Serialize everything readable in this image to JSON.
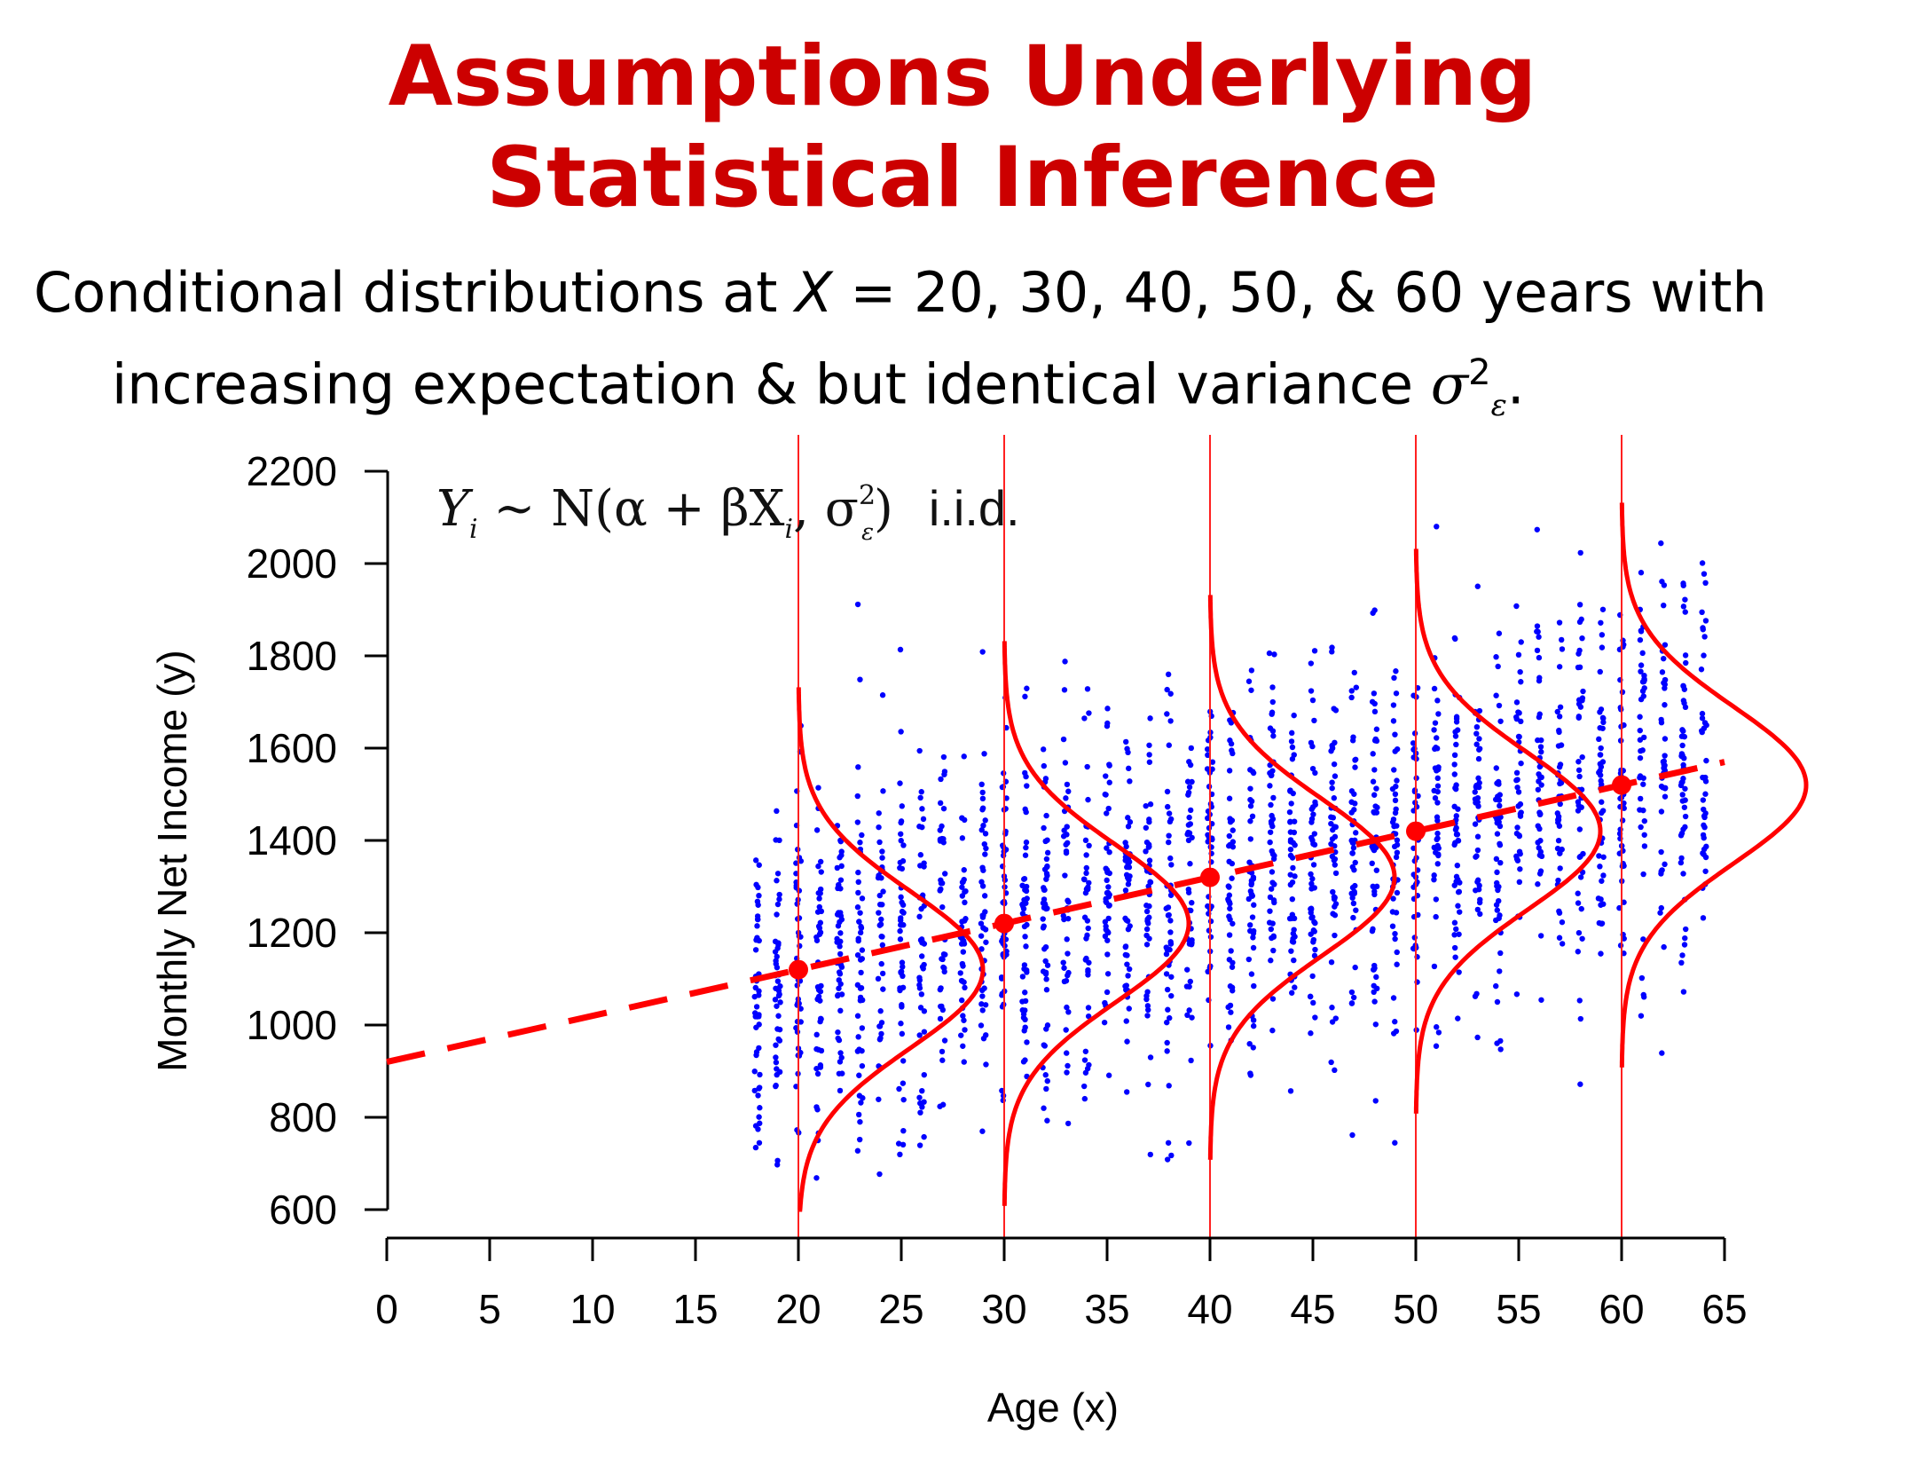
{
  "slide": {
    "title_line1": "Assumptions Underlying",
    "title_line2": "Statistical Inference",
    "subtitle_line1_a": "Conditional distributions at ",
    "subtitle_line1_x": "X",
    "subtitle_line1_b": " = 20, 30, 40, 50, & 60 years with",
    "subtitle_line2_a": "increasing expectation & but identical variance ",
    "subtitle_line2_sigma": "σ",
    "subtitle_line2_sup": "2",
    "subtitle_line2_sub": "ε",
    "subtitle_line2_end": "."
  },
  "chart_data": {
    "type": "scatter",
    "title": "",
    "xlabel": "Age (x)",
    "ylabel": "Monthly Net Income (y)",
    "xlim": [
      0,
      65
    ],
    "ylim": [
      600,
      2200
    ],
    "x_ticks": [
      0,
      5,
      10,
      15,
      20,
      25,
      30,
      35,
      40,
      45,
      50,
      55,
      60,
      65
    ],
    "y_ticks": [
      600,
      800,
      1000,
      1200,
      1400,
      1600,
      1800,
      2000,
      2200
    ],
    "grid": false,
    "annotation": {
      "y_var": "Y",
      "y_sub": "i",
      "mid": " ~ N(α + βX",
      "x_sub": "i",
      "comma": ", σ",
      "sig_sup": "2",
      "sig_sub": "ε",
      "close": ")",
      "iid": "i.i.d."
    },
    "regression_line": {
      "intercept": 920,
      "slope": 10,
      "color": "#ff0000",
      "style": "dashed"
    },
    "conditional_means": [
      {
        "x": 20,
        "y": 1120
      },
      {
        "x": 30,
        "y": 1220
      },
      {
        "x": 40,
        "y": 1320
      },
      {
        "x": 50,
        "y": 1420
      },
      {
        "x": 60,
        "y": 1520
      }
    ],
    "conditional_distributions": {
      "x_positions": [
        20,
        30,
        40,
        50,
        60
      ],
      "sd": 170,
      "color": "#ff0000"
    },
    "scatter_series": {
      "color": "#0000ff",
      "x_range": [
        18,
        64
      ],
      "y_mean_intercept": 920,
      "y_mean_slope": 10,
      "y_sd": 200,
      "points_per_age": 40
    },
    "colors": {
      "dots": "#0000ff",
      "curves": "#ff0000",
      "title": "#cc0000"
    }
  }
}
